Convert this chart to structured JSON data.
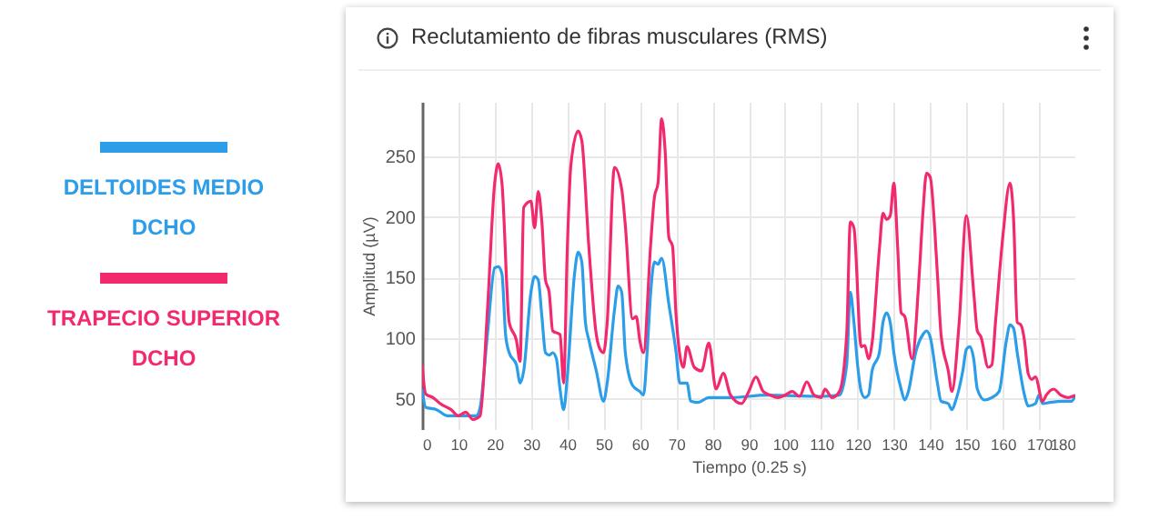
{
  "chart_data": {
    "type": "line",
    "title": "Reclutamiento de fibras musculares (RMS)",
    "xlabel": "Tiempo (0.25 s)",
    "ylabel": "Amplitud (µV)",
    "xlim": [
      0,
      180
    ],
    "xticks": [
      0,
      10,
      20,
      30,
      40,
      50,
      60,
      70,
      80,
      90,
      100,
      110,
      120,
      130,
      140,
      150,
      160,
      170,
      180
    ],
    "ylim": [
      25,
      295
    ],
    "yticks": [
      50,
      100,
      150,
      200,
      250
    ],
    "grid": true,
    "legend": "left",
    "series": [
      {
        "name": "DELTOIDES MEDIO DCHO",
        "color": "#2b9de9",
        "x": [
          0,
          1,
          4,
          7,
          10,
          15,
          16,
          18,
          20,
          21,
          22,
          23,
          24,
          26,
          27,
          28,
          30,
          31,
          32,
          33,
          34,
          35,
          36,
          37,
          38,
          39,
          40,
          42,
          43,
          44,
          45,
          46,
          48,
          50,
          51,
          53,
          54,
          55,
          56,
          58,
          60,
          61,
          62,
          63,
          64,
          65,
          66,
          68,
          70,
          71,
          73,
          74,
          76,
          79,
          85,
          95,
          110,
          115,
          117,
          118,
          119,
          120,
          121,
          122,
          123,
          124,
          126,
          127,
          128,
          129,
          130,
          132,
          133,
          134,
          136,
          138,
          139,
          140,
          142,
          143,
          145,
          146,
          147,
          149,
          150,
          151,
          152,
          153,
          155,
          157,
          159,
          161,
          162,
          163,
          164,
          166,
          167,
          169,
          170,
          171,
          173,
          177,
          179,
          180
        ],
        "values": [
          58,
          43,
          41,
          36,
          36,
          36,
          43,
          103,
          158,
          159,
          153,
          103,
          88,
          78,
          63,
          73,
          138,
          151,
          148,
          118,
          88,
          86,
          88,
          83,
          58,
          41,
          68,
          153,
          171,
          163,
          113,
          98,
          73,
          48,
          63,
          123,
          143,
          138,
          88,
          61,
          56,
          53,
          88,
          138,
          163,
          161,
          166,
          128,
          88,
          63,
          63,
          48,
          47,
          51,
          51,
          53,
          52,
          53,
          78,
          138,
          113,
          78,
          56,
          51,
          53,
          73,
          88,
          113,
          121,
          113,
          88,
          58,
          49,
          56,
          88,
          103,
          106,
          101,
          63,
          48,
          46,
          41,
          48,
          73,
          91,
          93,
          83,
          58,
          49,
          51,
          56,
          98,
          111,
          108,
          88,
          53,
          44,
          46,
          53,
          46,
          47,
          48,
          48,
          53
        ]
      },
      {
        "name": "TRAPECIO SUPERIOR DCHO",
        "color": "#f2296e",
        "x": [
          0,
          1,
          3,
          5,
          8,
          10,
          12,
          14,
          16,
          18,
          20,
          21,
          22,
          24,
          26,
          27,
          28,
          30,
          31,
          32,
          33,
          34,
          35,
          36,
          38,
          39,
          40,
          41,
          43,
          44,
          46,
          48,
          49,
          50,
          51,
          53,
          55,
          56,
          58,
          59,
          60,
          61,
          63,
          64,
          65,
          66,
          67,
          68,
          69,
          70,
          72,
          73,
          75,
          77,
          79,
          81,
          83,
          85,
          88,
          90,
          92,
          94,
          96,
          98,
          100,
          102,
          104,
          106,
          108,
          110,
          111,
          113,
          115,
          117,
          118,
          119,
          121,
          122,
          123,
          124,
          126,
          127,
          128,
          129,
          130,
          131,
          132,
          133,
          135,
          137,
          138,
          139,
          140,
          142,
          143,
          145,
          146,
          148,
          150,
          152,
          153,
          154,
          156,
          157,
          158,
          160,
          162,
          163,
          164,
          165,
          166,
          167,
          168,
          169,
          171,
          172,
          174,
          176,
          178,
          180
        ],
        "values": [
          78,
          54,
          51,
          46,
          41,
          36,
          39,
          33,
          36,
          123,
          228,
          244,
          228,
          113,
          98,
          81,
          208,
          213,
          191,
          221,
          196,
          148,
          138,
          106,
          103,
          63,
          173,
          243,
          271,
          263,
          173,
          103,
          91,
          88,
          113,
          241,
          223,
          193,
          116,
          118,
          98,
          88,
          178,
          216,
          228,
          281,
          253,
          183,
          176,
          118,
          76,
          93,
          76,
          73,
          96,
          58,
          71,
          53,
          46,
          56,
          68,
          56,
          53,
          51,
          53,
          56,
          52,
          64,
          53,
          51,
          58,
          51,
          56,
          103,
          196,
          191,
          93,
          94,
          83,
          96,
          173,
          203,
          198,
          201,
          228,
          178,
          121,
          118,
          83,
          153,
          203,
          236,
          233,
          153,
          103,
          73,
          56,
          113,
          201,
          138,
          106,
          101,
          76,
          78,
          113,
          183,
          228,
          198,
          113,
          111,
          98,
          71,
          66,
          68,
          48,
          53,
          58,
          53,
          51,
          53
        ]
      }
    ]
  }
}
